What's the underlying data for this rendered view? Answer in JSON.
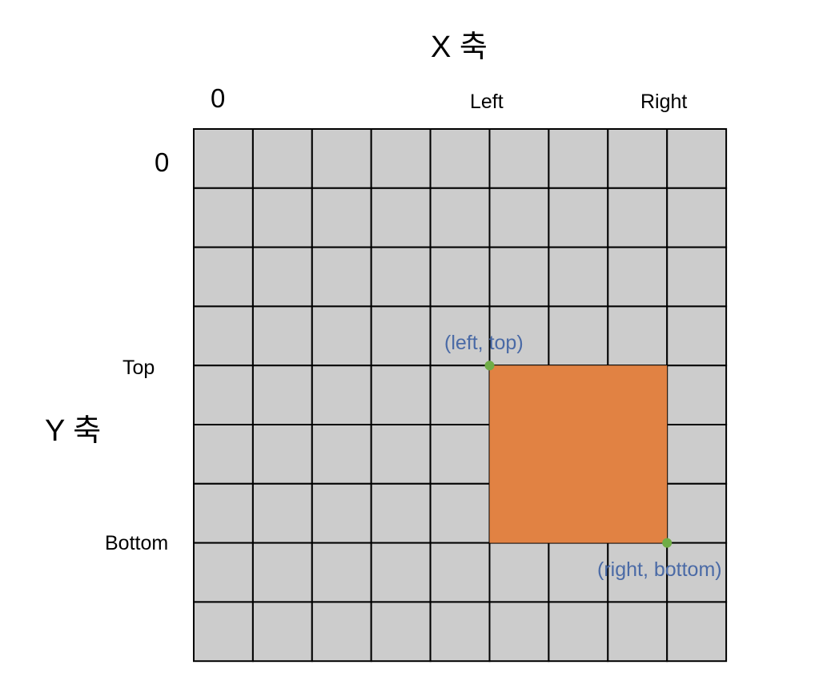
{
  "diagram": {
    "x_axis_title": "X 축",
    "y_axis_title": "Y 축",
    "x_origin_label": "0",
    "y_origin_label": "0",
    "left_label": "Left",
    "right_label": "Right",
    "top_label": "Top",
    "bottom_label": "Bottom",
    "top_left_point_label": "(left, top)",
    "bottom_right_point_label": "(right, bottom)",
    "grid": {
      "columns": 9,
      "rows": 9
    },
    "rectangle": {
      "left_column": 5,
      "top_row": 4,
      "right_column": 8,
      "bottom_row": 7
    }
  },
  "colors": {
    "grid_cell": "#cccccc",
    "grid_line": "#000000",
    "rectangle_fill": "#e18243",
    "point_marker": "#70ad47",
    "point_label": "#4a6aa6"
  }
}
